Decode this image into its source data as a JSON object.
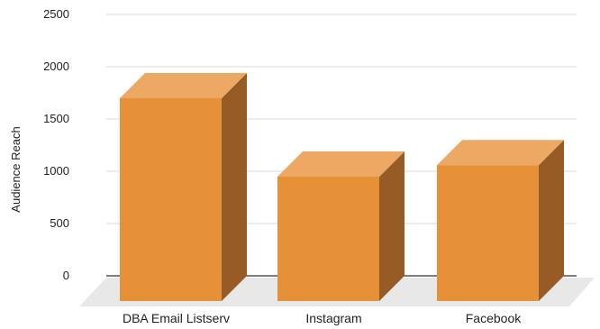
{
  "chart_data": {
    "type": "bar",
    "style": "3d",
    "categories": [
      "DBA Email Listserv",
      "Instagram",
      "Facebook"
    ],
    "values": [
      1940,
      1190,
      1300
    ],
    "title": "",
    "xlabel": "",
    "ylabel": "Audience Reach",
    "ylim": [
      0,
      2500
    ],
    "yticks": [
      0,
      500,
      1000,
      1500,
      2000,
      2500
    ],
    "grid": true,
    "legend": "none",
    "colors": {
      "bar_front": "#E69138",
      "bar_top": "#EDA964",
      "bar_side": "#975B26",
      "floor": "#E8E8E8",
      "gridline": "#D9D9D9",
      "baseline": "#333333"
    }
  }
}
